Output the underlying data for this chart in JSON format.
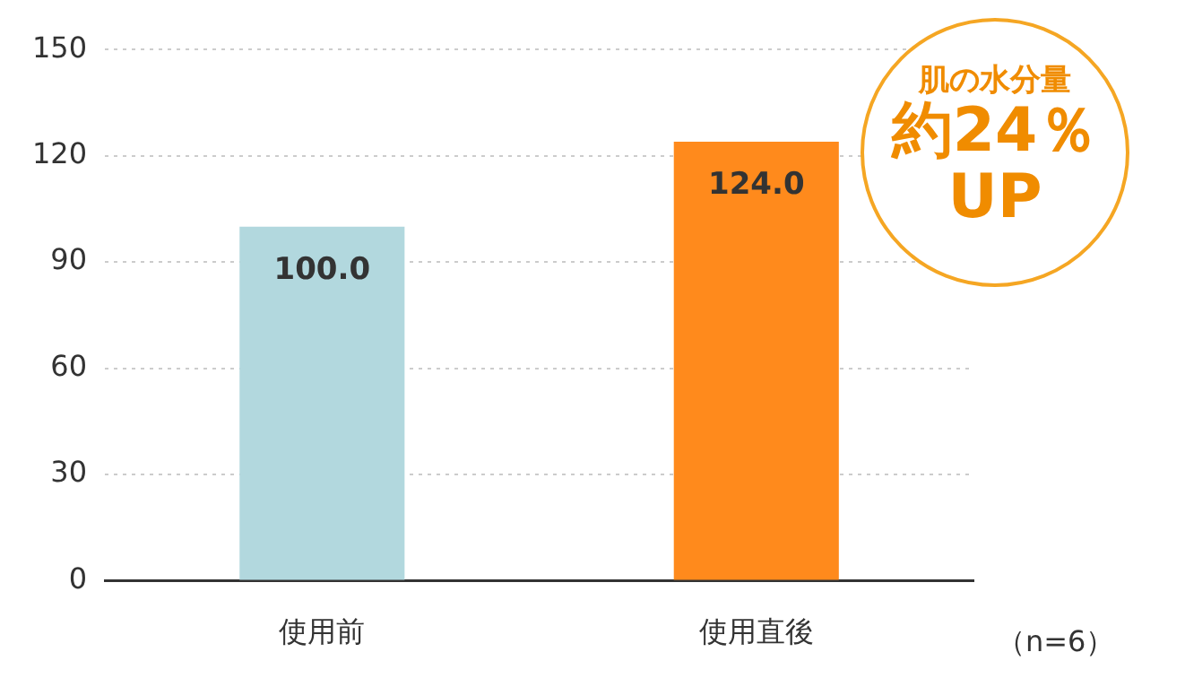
{
  "chart_data": {
    "type": "bar",
    "categories": [
      "使用前",
      "使用直後"
    ],
    "series": [
      {
        "values": [
          100.0,
          124.0
        ],
        "value_labels": [
          "100.0",
          "124.0"
        ],
        "colors": [
          "#b2d8de",
          "#ff8a1c"
        ]
      }
    ],
    "ylim": [
      0,
      150
    ],
    "yticks": [
      0,
      30,
      60,
      90,
      120,
      150
    ],
    "grid": "y",
    "annotations": [
      "肌の水分量",
      "約24％",
      "UP",
      "（n=6）"
    ]
  }
}
